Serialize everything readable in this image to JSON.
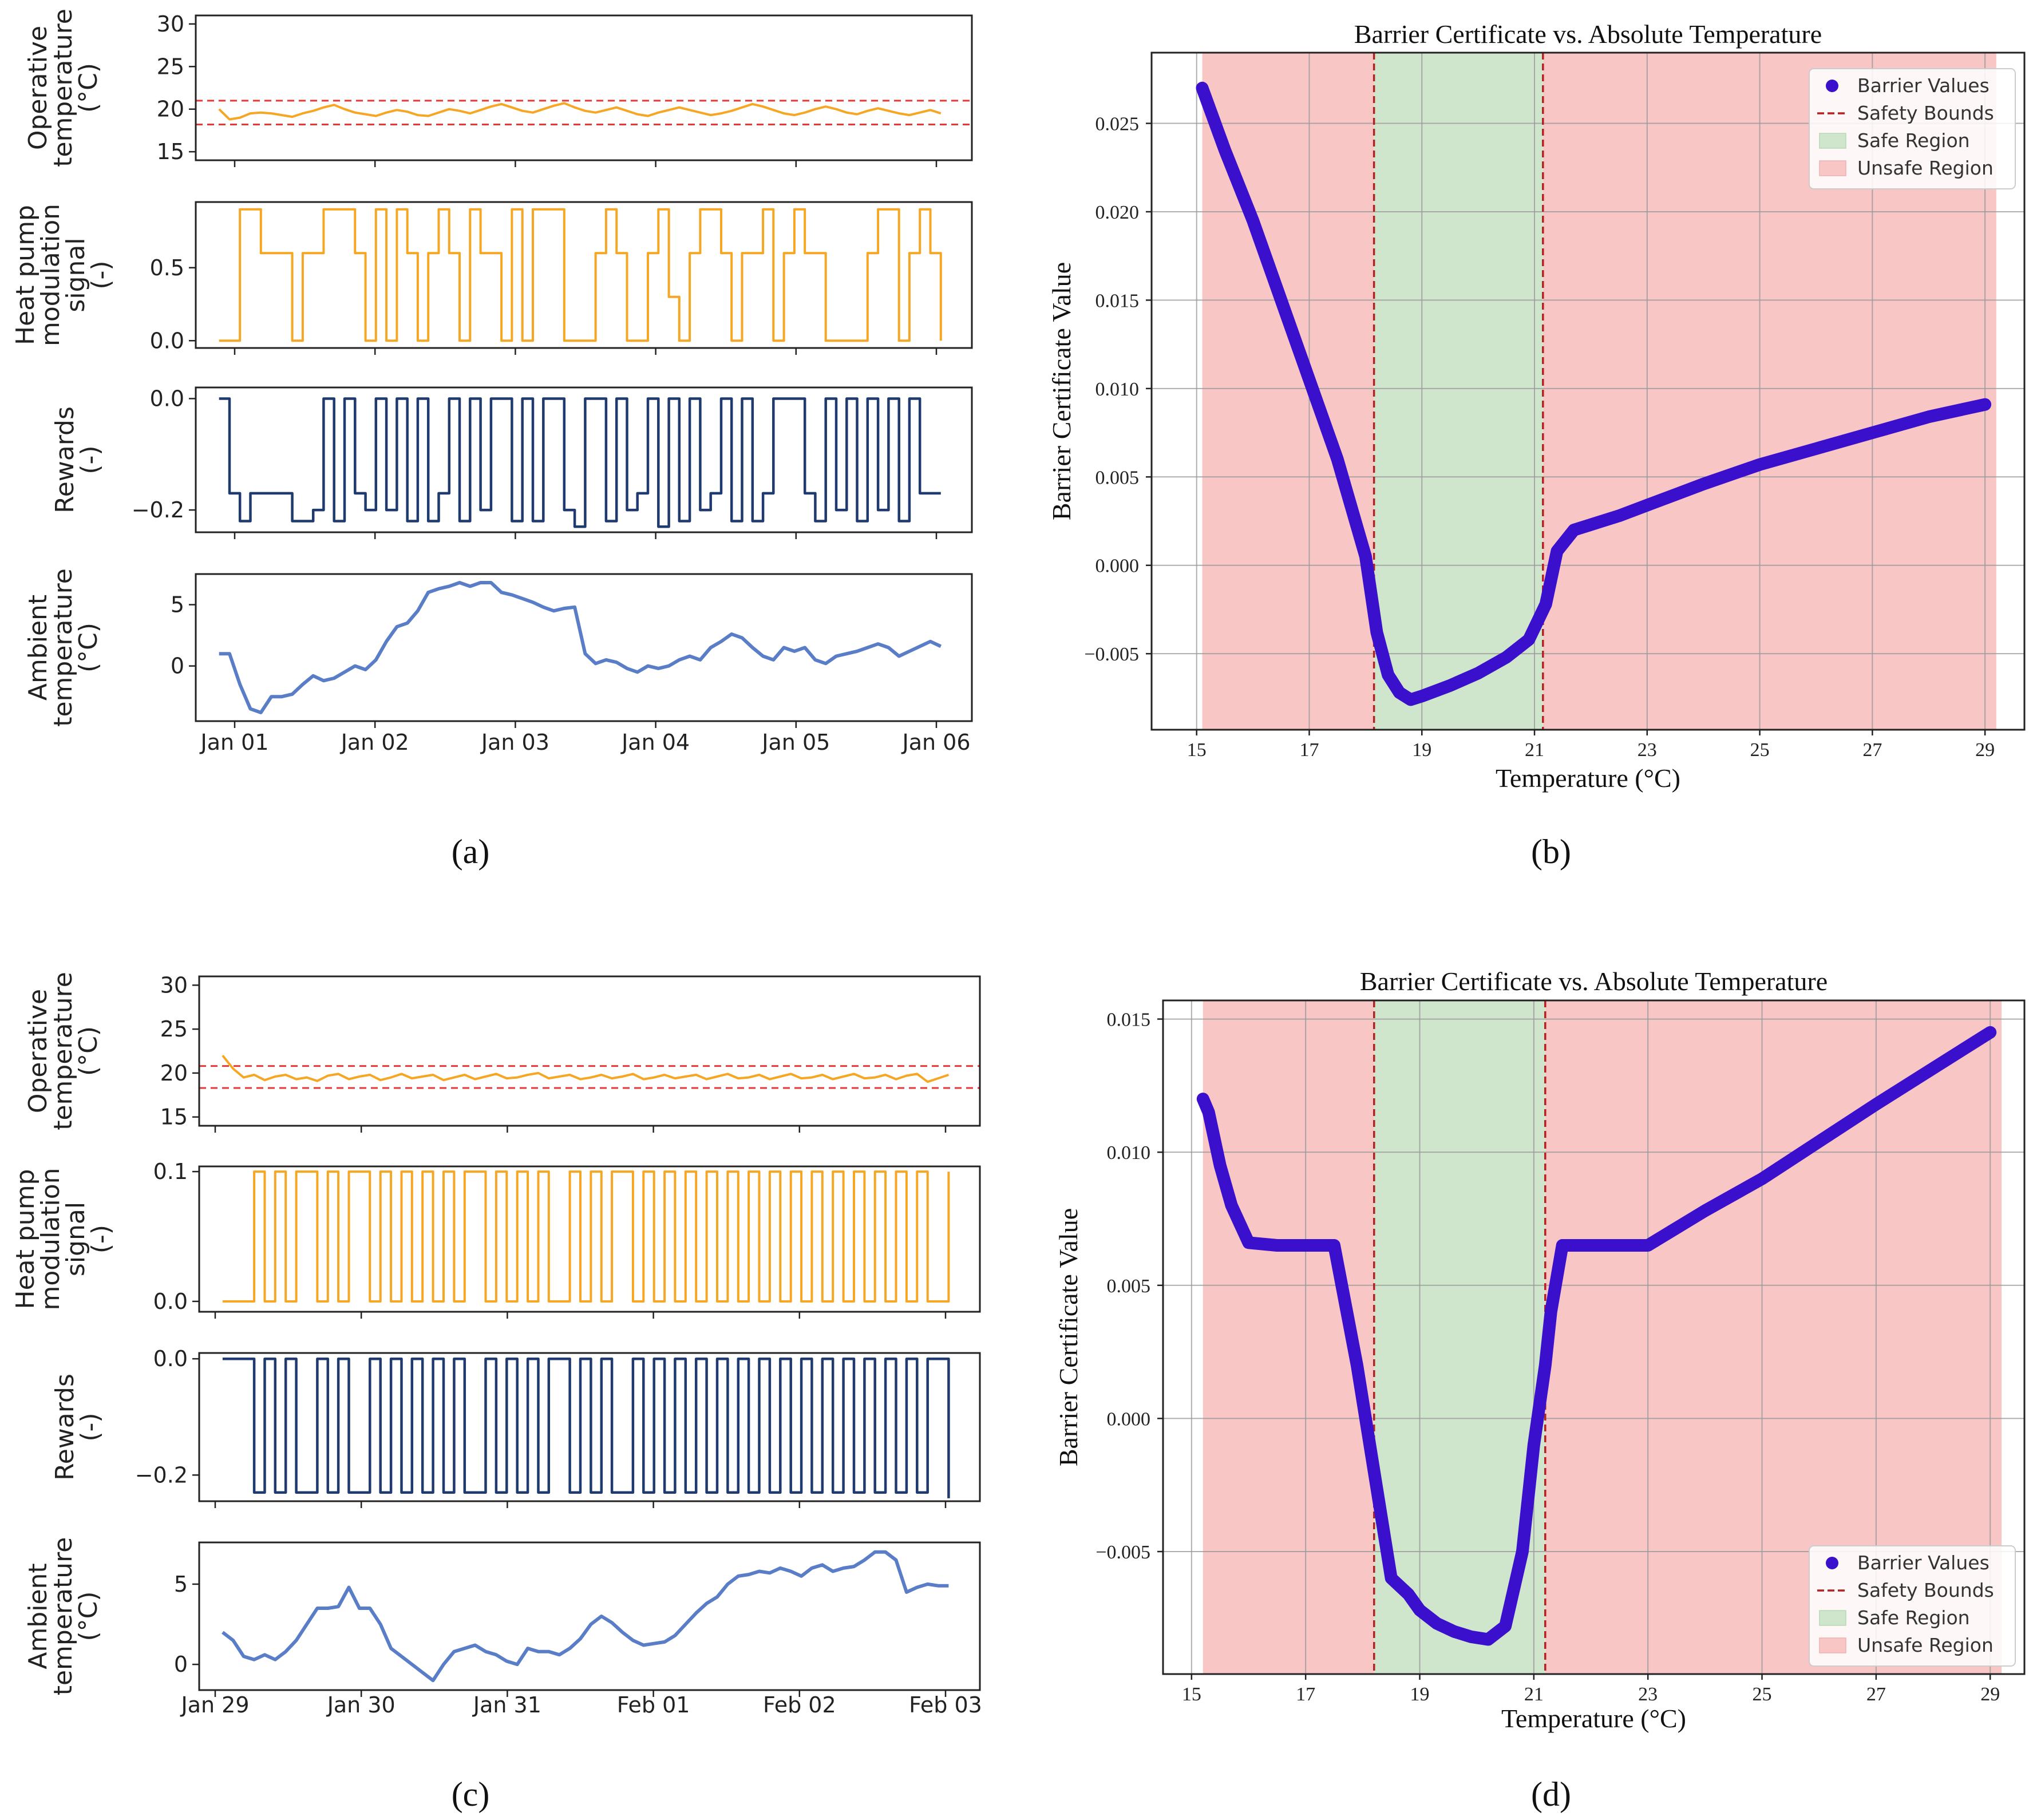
{
  "panel_labels": [
    "(a)",
    "(b)",
    "(c)",
    "(d)"
  ],
  "colors": {
    "orange": "#F5A623",
    "navy": "#1F3A6E",
    "ambient": "#5A7DC7",
    "bound": "#E53935",
    "barrier": "#3A10CC",
    "safety": "#B22222",
    "safe_fill": "#CFE6CC",
    "unsafe_fill": "#F9C6C6"
  },
  "chart_data": [
    {
      "id": "a",
      "type": "line",
      "x_ticks": [
        "Jan 01",
        "Jan 02",
        "Jan 03",
        "Jan 04",
        "Jan 05",
        "Jan 06"
      ],
      "subplots": [
        {
          "ylabel": [
            "Operative",
            "temperature",
            "(°C)"
          ],
          "ylim": [
            14,
            31
          ],
          "yticks": [
            "15",
            "20",
            "25",
            "30"
          ],
          "ytick_values": [
            15,
            20,
            25,
            30
          ],
          "bounds": [
            18.2,
            21.0
          ],
          "series": [
            20.0,
            18.8,
            19.0,
            19.5,
            19.6,
            19.5,
            19.3,
            19.1,
            19.5,
            19.8,
            20.2,
            20.5,
            20.0,
            19.6,
            19.4,
            19.2,
            19.6,
            19.9,
            19.7,
            19.3,
            19.2,
            19.6,
            20.0,
            19.8,
            19.5,
            19.9,
            20.3,
            20.6,
            20.2,
            19.8,
            19.6,
            20.0,
            20.4,
            20.7,
            20.2,
            19.8,
            19.6,
            19.9,
            20.2,
            19.8,
            19.4,
            19.2,
            19.6,
            19.9,
            20.2,
            19.9,
            19.6,
            19.3,
            19.5,
            19.8,
            20.2,
            20.6,
            20.3,
            19.9,
            19.5,
            19.3,
            19.6,
            20.0,
            20.3,
            20.0,
            19.6,
            19.4,
            19.8,
            20.1,
            19.8,
            19.5,
            19.3,
            19.6,
            19.9,
            19.5
          ]
        },
        {
          "ylabel": [
            "Heat pump",
            "modulation",
            "signal",
            "(-)"
          ],
          "ylim": [
            -0.05,
            0.95
          ],
          "yticks": [
            "0.0",
            "0.5"
          ],
          "ytick_values": [
            0.0,
            0.5
          ],
          "series": [
            0.0,
            0.0,
            0.9,
            0.9,
            0.6,
            0.6,
            0.6,
            0.0,
            0.6,
            0.6,
            0.9,
            0.9,
            0.9,
            0.6,
            0.0,
            0.9,
            0.0,
            0.9,
            0.6,
            0.0,
            0.6,
            0.9,
            0.6,
            0.0,
            0.9,
            0.6,
            0.6,
            0.0,
            0.9,
            0.0,
            0.9,
            0.9,
            0.9,
            0.0,
            0.0,
            0.0,
            0.6,
            0.9,
            0.6,
            0.0,
            0.0,
            0.6,
            0.9,
            0.3,
            0.0,
            0.6,
            0.9,
            0.9,
            0.6,
            0.0,
            0.6,
            0.6,
            0.9,
            0.0,
            0.6,
            0.9,
            0.6,
            0.6,
            0.0,
            0.0,
            0.0,
            0.0,
            0.6,
            0.9,
            0.9,
            0.0,
            0.6,
            0.9,
            0.6,
            0.0
          ]
        },
        {
          "ylabel": [
            "Rewards",
            "(-)"
          ],
          "ylim": [
            -0.24,
            0.02
          ],
          "yticks": [
            "0.0",
            "−0.2"
          ],
          "ytick_values": [
            0.0,
            -0.2
          ],
          "series": [
            0.0,
            -0.17,
            -0.22,
            -0.17,
            -0.17,
            -0.17,
            -0.17,
            -0.22,
            -0.22,
            -0.2,
            0.0,
            -0.22,
            0.0,
            -0.17,
            -0.2,
            0.0,
            -0.2,
            0.0,
            -0.22,
            0.0,
            -0.22,
            -0.17,
            0.0,
            -0.22,
            0.0,
            -0.2,
            0.0,
            0.0,
            -0.22,
            0.0,
            -0.22,
            0.0,
            0.0,
            -0.2,
            -0.23,
            0.0,
            0.0,
            -0.22,
            0.0,
            -0.2,
            -0.17,
            0.0,
            -0.23,
            0.0,
            -0.22,
            0.0,
            -0.2,
            -0.17,
            0.0,
            -0.22,
            0.0,
            -0.22,
            -0.17,
            0.0,
            0.0,
            0.0,
            -0.17,
            -0.22,
            0.0,
            -0.2,
            0.0,
            -0.22,
            0.0,
            -0.2,
            0.0,
            -0.22,
            0.0,
            -0.17,
            -0.17,
            -0.17
          ]
        },
        {
          "ylabel": [
            "Ambient",
            "temperature",
            "(°C)"
          ],
          "ylim": [
            -4.5,
            7.5
          ],
          "yticks": [
            "0",
            "5"
          ],
          "ytick_values": [
            0,
            5
          ],
          "series": [
            1.0,
            1.0,
            -1.5,
            -3.5,
            -3.8,
            -2.5,
            -2.5,
            -2.3,
            -1.5,
            -0.8,
            -1.2,
            -1.0,
            -0.5,
            0.0,
            -0.3,
            0.5,
            2.0,
            3.2,
            3.5,
            4.5,
            6.0,
            6.3,
            6.5,
            6.8,
            6.5,
            6.8,
            6.8,
            6.0,
            5.8,
            5.5,
            5.2,
            4.8,
            4.5,
            4.7,
            4.8,
            1.0,
            0.2,
            0.5,
            0.3,
            -0.2,
            -0.5,
            0.0,
            -0.2,
            0.0,
            0.5,
            0.8,
            0.5,
            1.5,
            2.0,
            2.6,
            2.3,
            1.5,
            0.8,
            0.5,
            1.5,
            1.2,
            1.5,
            0.5,
            0.2,
            0.8,
            1.0,
            1.2,
            1.5,
            1.8,
            1.5,
            0.8,
            1.2,
            1.6,
            2.0,
            1.6
          ]
        }
      ]
    },
    {
      "id": "b",
      "type": "line",
      "title": "Barrier Certificate vs. Absolute Temperature",
      "xlabel": "Temperature (°C)",
      "ylabel": "Barrier Certificate Value",
      "xlim": [
        14.2,
        29.7
      ],
      "ylim": [
        -0.0093,
        0.029
      ],
      "x_ticks": [
        15,
        17,
        19,
        21,
        23,
        25,
        27,
        29
      ],
      "y_ticks": [
        -0.005,
        0.0,
        0.005,
        0.01,
        0.015,
        0.02,
        0.025
      ],
      "y_tick_labels": [
        "−0.005",
        "0.000",
        "0.005",
        "0.010",
        "0.015",
        "0.020",
        "0.025"
      ],
      "safety_bounds": [
        18.15,
        21.15
      ],
      "regions": {
        "unsafe": [
          [
            15.1,
            18.15
          ],
          [
            21.15,
            29.2
          ]
        ],
        "safe": [
          18.15,
          21.15
        ]
      },
      "legend": [
        "Barrier Values",
        "Safety Bounds",
        "Safe Region",
        "Unsafe Region"
      ],
      "legend_position": "top-right",
      "x": [
        15.1,
        15.5,
        16.0,
        16.5,
        17.0,
        17.5,
        18.0,
        18.2,
        18.4,
        18.6,
        18.8,
        19.0,
        19.5,
        20.0,
        20.5,
        20.9,
        21.2,
        21.4,
        21.7,
        22.0,
        22.5,
        23.0,
        24.0,
        25.0,
        26.0,
        27.0,
        28.0,
        29.0
      ],
      "y": [
        0.027,
        0.0235,
        0.0195,
        0.015,
        0.0105,
        0.006,
        0.0005,
        -0.0038,
        -0.0062,
        -0.0072,
        -0.0076,
        -0.0074,
        -0.0068,
        -0.0061,
        -0.0052,
        -0.0042,
        -0.0022,
        0.0008,
        0.002,
        0.0023,
        0.0028,
        0.0034,
        0.0046,
        0.0057,
        0.0066,
        0.0075,
        0.0084,
        0.0091
      ]
    },
    {
      "id": "c",
      "type": "line",
      "x_ticks": [
        "Jan 29",
        "Jan 30",
        "Jan 31",
        "Feb 01",
        "Feb 02",
        "Feb 03"
      ],
      "subplots": [
        {
          "ylabel": [
            "Operative",
            "temperature",
            "(°C)"
          ],
          "ylim": [
            14,
            31
          ],
          "yticks": [
            "15",
            "20",
            "25",
            "30"
          ],
          "ytick_values": [
            15,
            20,
            25,
            30
          ],
          "bounds": [
            18.3,
            20.8
          ],
          "series": [
            22.0,
            20.5,
            19.5,
            19.8,
            19.2,
            19.6,
            19.8,
            19.3,
            19.5,
            19.1,
            19.7,
            19.9,
            19.3,
            19.6,
            19.8,
            19.2,
            19.5,
            19.9,
            19.4,
            19.6,
            19.8,
            19.2,
            19.5,
            19.8,
            19.3,
            19.6,
            19.9,
            19.4,
            19.5,
            19.8,
            20.0,
            19.4,
            19.6,
            19.8,
            19.3,
            19.5,
            19.8,
            19.4,
            19.6,
            19.9,
            19.3,
            19.5,
            19.8,
            19.4,
            19.6,
            19.8,
            19.3,
            19.6,
            19.9,
            19.4,
            19.5,
            19.8,
            19.3,
            19.6,
            19.9,
            19.4,
            19.5,
            19.8,
            19.3,
            19.6,
            19.9,
            19.4,
            19.5,
            19.8,
            19.3,
            19.7,
            19.9,
            19.0,
            19.4,
            19.8
          ]
        },
        {
          "ylabel": [
            "Heat pump",
            "modulation",
            "signal",
            "(-)"
          ],
          "ylim": [
            -0.008,
            0.104
          ],
          "yticks": [
            "0.0",
            "0.1"
          ],
          "ytick_values": [
            0.0,
            0.1
          ],
          "series": [
            0.0,
            0.0,
            0.0,
            0.1,
            0.0,
            0.1,
            0.0,
            0.1,
            0.1,
            0.0,
            0.1,
            0.0,
            0.1,
            0.1,
            0.0,
            0.1,
            0.0,
            0.1,
            0.0,
            0.1,
            0.0,
            0.1,
            0.0,
            0.1,
            0.1,
            0.0,
            0.1,
            0.0,
            0.1,
            0.0,
            0.1,
            0.0,
            0.0,
            0.1,
            0.0,
            0.1,
            0.0,
            0.1,
            0.1,
            0.0,
            0.1,
            0.0,
            0.1,
            0.0,
            0.1,
            0.0,
            0.1,
            0.0,
            0.1,
            0.0,
            0.1,
            0.0,
            0.1,
            0.0,
            0.1,
            0.0,
            0.1,
            0.0,
            0.1,
            0.0,
            0.1,
            0.0,
            0.1,
            0.0,
            0.1,
            0.0,
            0.1,
            0.0,
            0.0,
            0.1
          ]
        },
        {
          "ylabel": [
            "Rewards",
            "(-)"
          ],
          "ylim": [
            -0.245,
            0.01
          ],
          "yticks": [
            "0.0",
            "−0.2"
          ],
          "ytick_values": [
            0.0,
            -0.2
          ],
          "series": [
            0.0,
            0.0,
            0.0,
            -0.23,
            0.0,
            -0.23,
            0.0,
            -0.23,
            -0.23,
            0.0,
            -0.23,
            0.0,
            -0.23,
            -0.23,
            0.0,
            -0.23,
            0.0,
            -0.23,
            0.0,
            -0.23,
            0.0,
            -0.23,
            0.0,
            -0.23,
            -0.23,
            0.0,
            -0.23,
            0.0,
            -0.23,
            0.0,
            -0.23,
            0.0,
            0.0,
            -0.23,
            0.0,
            -0.23,
            0.0,
            -0.23,
            -0.23,
            0.0,
            -0.23,
            0.0,
            -0.23,
            0.0,
            -0.23,
            0.0,
            -0.23,
            0.0,
            -0.23,
            0.0,
            -0.23,
            0.0,
            -0.23,
            0.0,
            -0.23,
            0.0,
            -0.23,
            0.0,
            -0.23,
            0.0,
            -0.23,
            0.0,
            -0.23,
            0.0,
            -0.23,
            0.0,
            -0.23,
            0.0,
            0.0,
            -0.24
          ]
        },
        {
          "ylabel": [
            "Ambient",
            "temperature",
            "(°C)"
          ],
          "ylim": [
            -1.6,
            7.6
          ],
          "yticks": [
            "0",
            "5"
          ],
          "ytick_values": [
            0,
            5
          ],
          "series": [
            2.0,
            1.5,
            0.5,
            0.3,
            0.6,
            0.3,
            0.8,
            1.5,
            2.5,
            3.5,
            3.5,
            3.6,
            4.8,
            3.5,
            3.5,
            2.5,
            1.0,
            0.5,
            0.0,
            -0.5,
            -1.0,
            0.0,
            0.8,
            1.0,
            1.2,
            0.8,
            0.6,
            0.2,
            0.0,
            1.0,
            0.8,
            0.8,
            0.6,
            1.0,
            1.6,
            2.5,
            3.0,
            2.6,
            2.0,
            1.5,
            1.2,
            1.3,
            1.4,
            1.8,
            2.5,
            3.2,
            3.8,
            4.2,
            5.0,
            5.5,
            5.6,
            5.8,
            5.7,
            6.0,
            5.8,
            5.5,
            6.0,
            6.2,
            5.8,
            6.0,
            6.1,
            6.5,
            7.0,
            7.0,
            6.5,
            4.5,
            4.8,
            5.0,
            4.9,
            4.9
          ]
        }
      ]
    },
    {
      "id": "d",
      "type": "line",
      "title": "Barrier Certificate vs. Absolute Temperature",
      "xlabel": "Temperature (°C)",
      "ylabel": "Barrier Certificate Value",
      "xlim": [
        14.5,
        29.6
      ],
      "ylim": [
        -0.0096,
        0.0157
      ],
      "x_ticks": [
        15,
        17,
        19,
        21,
        23,
        25,
        27,
        29
      ],
      "y_ticks": [
        -0.005,
        0.0,
        0.005,
        0.01,
        0.015
      ],
      "y_tick_labels": [
        "−0.005",
        "0.000",
        "0.005",
        "0.010",
        "0.015"
      ],
      "safety_bounds": [
        18.2,
        21.2
      ],
      "regions": {
        "unsafe": [
          [
            15.2,
            18.2
          ],
          [
            21.2,
            29.2
          ]
        ],
        "safe": [
          18.2,
          21.2
        ]
      },
      "legend": [
        "Barrier Values",
        "Safety Bounds",
        "Safe Region",
        "Unsafe Region"
      ],
      "legend_position": "bottom-right",
      "x": [
        15.2,
        15.3,
        15.5,
        15.7,
        16.0,
        16.5,
        17.0,
        17.5,
        17.9,
        18.2,
        18.5,
        18.8,
        19.0,
        19.3,
        19.6,
        19.9,
        20.2,
        20.5,
        20.8,
        21.0,
        21.2,
        21.3,
        21.5,
        22.0,
        23.0,
        24.0,
        25.0,
        27.0,
        29.0
      ],
      "y": [
        0.012,
        0.0115,
        0.0095,
        0.008,
        0.0066,
        0.0065,
        0.0065,
        0.0065,
        0.002,
        -0.002,
        -0.006,
        -0.0066,
        -0.0072,
        -0.0077,
        -0.008,
        -0.0082,
        -0.0083,
        -0.0078,
        -0.005,
        -0.001,
        0.002,
        0.004,
        0.0065,
        0.0065,
        0.0065,
        0.0078,
        0.009,
        0.0118,
        0.0145
      ]
    }
  ]
}
